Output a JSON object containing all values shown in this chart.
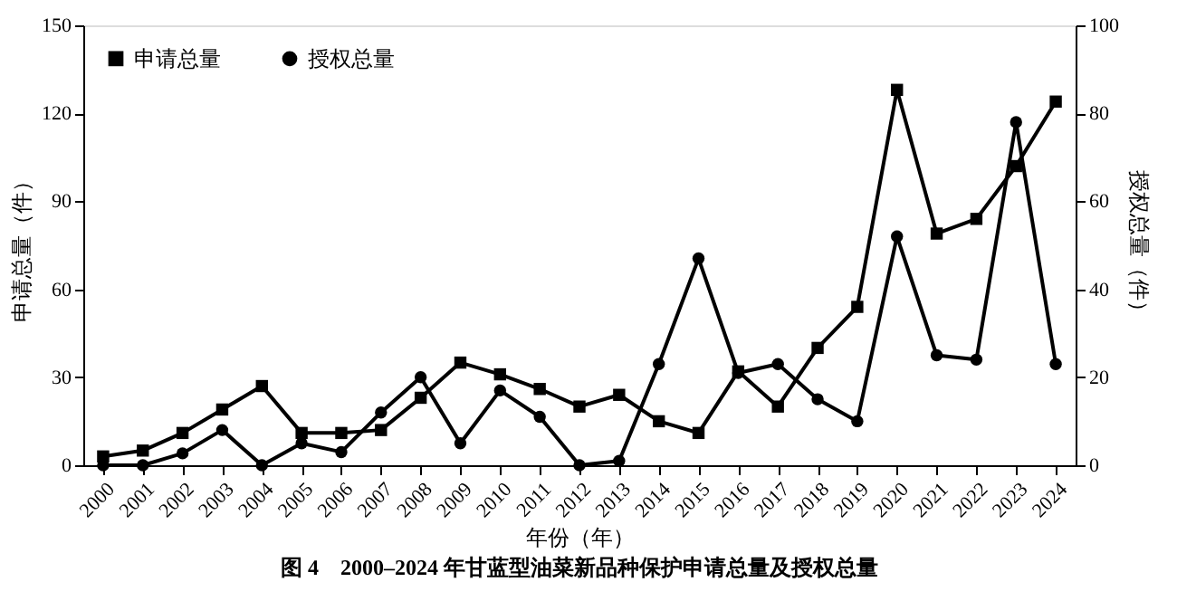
{
  "chart_data": {
    "type": "line",
    "categories": [
      "2000",
      "2001",
      "2002",
      "2003",
      "2004",
      "2005",
      "2006",
      "2007",
      "2008",
      "2009",
      "2010",
      "2011",
      "2012",
      "2013",
      "2014",
      "2015",
      "2016",
      "2017",
      "2018",
      "2019",
      "2020",
      "2021",
      "2022",
      "2023",
      "2024"
    ],
    "series": [
      {
        "name": "申请总量",
        "color": "#000000",
        "marker": "square",
        "values": [
          3,
          5,
          11,
          19,
          27,
          11,
          11,
          12,
          23,
          35,
          31,
          26,
          20,
          24,
          15,
          11,
          32,
          20,
          40,
          54,
          128,
          79,
          84,
          102,
          124
        ]
      },
      {
        "name": "授权总量",
        "color": "#000000",
        "marker": "circle",
        "axis": "y2",
        "values": [
          0,
          0,
          2.7,
          8,
          0,
          5,
          3,
          12,
          20,
          5,
          17,
          11,
          0,
          1,
          23,
          47,
          21,
          23,
          15,
          10,
          52,
          25,
          24,
          78,
          23
        ]
      }
    ],
    "xlabel": "年份（年）",
    "ylabel": "申请总量（件）",
    "y2label": "授权总量（件）",
    "ylim": [
      0,
      150
    ],
    "yticks": [
      0,
      30,
      60,
      90,
      120,
      150
    ],
    "y2lim": [
      0,
      100
    ],
    "y2ticks": [
      0,
      20,
      40,
      60,
      80,
      100
    ],
    "grid": false,
    "legend": "top left",
    "line_style": "solid",
    "annotations": [
      "图 4　2000–2024 年甘蓝型油菜新品种保护申请总量及授权总量"
    ]
  }
}
